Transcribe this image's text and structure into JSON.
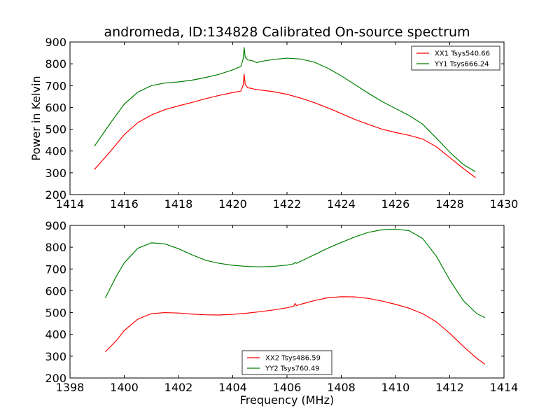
{
  "title": "andromeda, ID:134828 Calibrated On-source spectrum",
  "chart_data": [
    {
      "type": "line",
      "xlabel": "",
      "ylabel": "Power in Kelvin",
      "xlim": [
        1414,
        1430
      ],
      "ylim": [
        200,
        900
      ],
      "xticks": [
        "1414",
        "1416",
        "1418",
        "1420",
        "1422",
        "1424",
        "1426",
        "1428",
        "1430"
      ],
      "yticks": [
        "200",
        "300",
        "400",
        "500",
        "600",
        "700",
        "800",
        "900"
      ],
      "legend_position": "top-right",
      "series": [
        {
          "name": "XX1 Tsys540.66",
          "color": "#ff0000",
          "x": [
            1414.9,
            1415.5,
            1416.0,
            1416.5,
            1417.0,
            1417.5,
            1418.0,
            1418.5,
            1419.0,
            1419.5,
            1420.0,
            1420.3,
            1420.38,
            1420.42,
            1420.46,
            1420.55,
            1420.7,
            1420.8,
            1421.0,
            1421.5,
            1422.0,
            1422.5,
            1423.0,
            1423.5,
            1424.0,
            1424.5,
            1425.0,
            1425.5,
            1426.0,
            1426.5,
            1427.0,
            1427.5,
            1428.0,
            1428.5,
            1428.95
          ],
          "y": [
            315,
            400,
            475,
            530,
            565,
            590,
            607,
            623,
            640,
            655,
            668,
            675,
            700,
            752,
            705,
            690,
            687,
            683,
            680,
            672,
            660,
            643,
            622,
            598,
            572,
            545,
            522,
            500,
            485,
            472,
            455,
            420,
            370,
            320,
            278
          ]
        },
        {
          "name": "YY1 Tsys666.24",
          "color": "#008000",
          "x": [
            1414.9,
            1415.5,
            1416.0,
            1416.5,
            1417.0,
            1417.5,
            1418.0,
            1418.5,
            1419.0,
            1419.5,
            1420.0,
            1420.3,
            1420.38,
            1420.42,
            1420.46,
            1420.55,
            1420.7,
            1420.9,
            1421.0,
            1421.5,
            1422.0,
            1422.5,
            1423.0,
            1423.5,
            1424.0,
            1424.5,
            1425.0,
            1425.5,
            1426.0,
            1426.5,
            1427.0,
            1427.5,
            1428.0,
            1428.5,
            1428.95
          ],
          "y": [
            422,
            530,
            615,
            670,
            700,
            712,
            717,
            725,
            737,
            752,
            772,
            788,
            820,
            875,
            830,
            818,
            815,
            805,
            810,
            820,
            826,
            822,
            808,
            780,
            745,
            705,
            665,
            627,
            595,
            563,
            523,
            460,
            395,
            338,
            305
          ]
        }
      ]
    },
    {
      "type": "line",
      "xlabel": "Frequency (MHz)",
      "ylabel": "",
      "xlim": [
        1398,
        1414
      ],
      "ylim": [
        200,
        900
      ],
      "xticks": [
        "1398",
        "1400",
        "1402",
        "1404",
        "1406",
        "1408",
        "1410",
        "1412",
        "1414"
      ],
      "yticks": [
        "200",
        "300",
        "400",
        "500",
        "600",
        "700",
        "800",
        "900"
      ],
      "legend_position": "bottom-center",
      "series": [
        {
          "name": "XX2 Tsys486.59",
          "color": "#ff0000",
          "x": [
            1399.3,
            1399.7,
            1400.0,
            1400.5,
            1401.0,
            1401.5,
            1402.0,
            1402.5,
            1403.0,
            1403.5,
            1404.0,
            1404.5,
            1405.0,
            1405.5,
            1406.0,
            1406.25,
            1406.3,
            1406.35,
            1406.5,
            1407.0,
            1407.5,
            1408.0,
            1408.5,
            1409.0,
            1409.5,
            1410.0,
            1410.5,
            1411.0,
            1411.5,
            1412.0,
            1412.5,
            1413.0,
            1413.3
          ],
          "y": [
            320,
            370,
            418,
            470,
            495,
            500,
            498,
            493,
            490,
            489,
            492,
            497,
            504,
            512,
            522,
            530,
            542,
            532,
            538,
            555,
            568,
            573,
            572,
            565,
            553,
            538,
            520,
            495,
            458,
            405,
            345,
            290,
            263
          ]
        },
        {
          "name": "YY2 Tsys760.49",
          "color": "#008000",
          "x": [
            1399.3,
            1399.7,
            1400.0,
            1400.5,
            1401.0,
            1401.5,
            1402.0,
            1402.5,
            1403.0,
            1403.5,
            1404.0,
            1404.5,
            1405.0,
            1405.5,
            1406.0,
            1406.25,
            1406.3,
            1406.35,
            1406.5,
            1407.0,
            1407.5,
            1408.0,
            1408.5,
            1409.0,
            1409.5,
            1410.0,
            1410.5,
            1411.0,
            1411.5,
            1412.0,
            1412.5,
            1413.0,
            1413.3
          ],
          "y": [
            567,
            665,
            728,
            795,
            820,
            815,
            793,
            765,
            740,
            726,
            717,
            712,
            710,
            712,
            718,
            724,
            730,
            726,
            735,
            765,
            795,
            822,
            847,
            868,
            880,
            883,
            876,
            840,
            760,
            650,
            555,
            495,
            477
          ]
        }
      ]
    }
  ]
}
